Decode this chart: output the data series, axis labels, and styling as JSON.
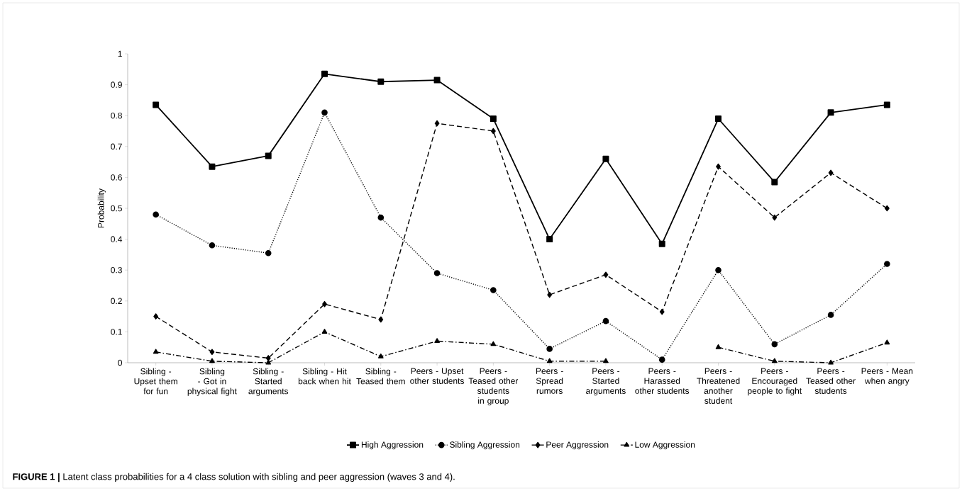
{
  "chart_data": {
    "type": "line",
    "ylabel": "Probability",
    "categories": [
      "Sibling - Upset them for fun",
      "Sibling - Got in physical fight",
      "Sibling - Started arguments",
      "Sibling - Hit back when hit",
      "Sibling - Teased them",
      "Peers - Upset other students",
      "Peers - Teased other students in group",
      "Peers - Spread rumors",
      "Peers - Started arguments",
      "Peers - Harassed other students",
      "Peers - Threatened another student",
      "Peers - Encouraged people to fight",
      "Peers - Teased other students",
      "Peers - Mean when angry"
    ],
    "series": [
      {
        "name": "High Aggression",
        "color": "#000000",
        "marker": "square",
        "line_style": "solid",
        "values": [
          0.835,
          0.635,
          0.67,
          0.935,
          0.91,
          0.915,
          0.79,
          0.4,
          0.66,
          0.385,
          0.79,
          0.585,
          0.81,
          0.835
        ]
      },
      {
        "name": "Sibling Aggression",
        "color": "#000000",
        "marker": "circle",
        "line_style": "dotted",
        "values": [
          0.48,
          0.38,
          0.355,
          0.81,
          0.47,
          0.29,
          0.235,
          0.045,
          0.135,
          0.01,
          0.3,
          0.06,
          0.155,
          0.32
        ]
      },
      {
        "name": "Peer Aggression",
        "color": "#000000",
        "marker": "diamond",
        "line_style": "dashed",
        "values": [
          0.15,
          0.035,
          0.015,
          0.19,
          0.14,
          0.775,
          0.75,
          0.22,
          0.285,
          0.165,
          0.635,
          0.47,
          0.615,
          0.5
        ]
      },
      {
        "name": "Low Aggression",
        "color": "#000000",
        "marker": "triangle",
        "line_style": "dashdot",
        "values": [
          0.035,
          0.005,
          0,
          0.1,
          0.02,
          0.07,
          0.06,
          0.005,
          0.005,
          null,
          0.05,
          0.005,
          0,
          0.065
        ]
      }
    ],
    "ylim": [
      0,
      1
    ],
    "yticks": [
      0,
      0.1,
      0.2,
      0.3,
      0.4,
      0.5,
      0.6,
      0.7,
      0.8,
      0.9,
      1
    ],
    "grid": false,
    "legend": "bottom",
    "annotations": [
      "**FIGURE 1 |** Latent class probabilities for a 4 class solution with sibling and peer aggression (waves 3 and 4)."
    ]
  }
}
